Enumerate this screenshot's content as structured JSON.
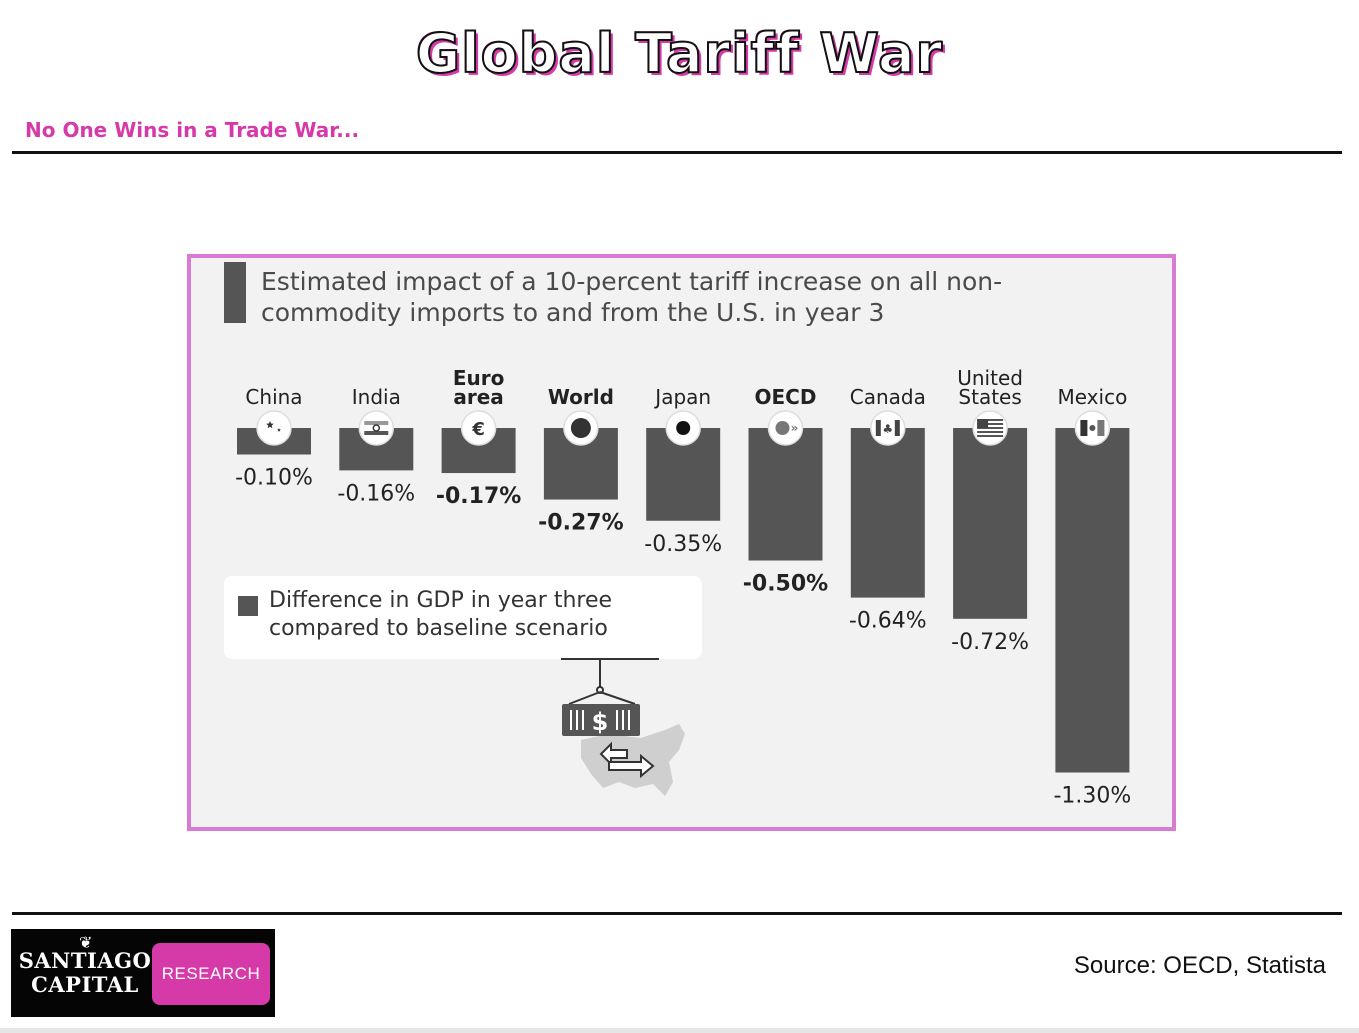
{
  "page": {
    "title": "Global Tariff War",
    "subtitle": "No One Wins in a Trade War...",
    "source": "Source: OECD, Statista",
    "logo": {
      "line1": "Santiago",
      "line2": "Capital",
      "badge": "RESEARCH"
    }
  },
  "colors": {
    "accent": "#d63aa9",
    "panel_border": "#d77cd0",
    "bar": "#555555",
    "panel_bg": "#f2f2f2"
  },
  "chart_data": {
    "type": "bar",
    "title": "Estimated impact of a 10-percent tariff increase on all non-commodity imports to and from the U.S. in year 3",
    "categories": [
      "China",
      "India",
      "Euro area",
      "World",
      "Japan",
      "OECD",
      "Canada",
      "United States",
      "Mexico"
    ],
    "bold_categories": [
      "Euro area",
      "World",
      "OECD"
    ],
    "values": [
      -0.1,
      -0.16,
      -0.17,
      -0.27,
      -0.35,
      -0.5,
      -0.64,
      -0.72,
      -1.3
    ],
    "value_labels": [
      "-0.10%",
      "-0.16%",
      "-0.17%",
      "-0.27%",
      "-0.35%",
      "-0.50%",
      "-0.64%",
      "-0.72%",
      "-1.30%"
    ],
    "icons": [
      "china-flag-icon",
      "india-flag-icon",
      "euro-icon",
      "globe-icon",
      "japan-flag-icon",
      "oecd-icon",
      "canada-flag-icon",
      "us-flag-icon",
      "mexico-flag-icon"
    ],
    "legend": "Difference in GDP in year three compared to baseline scenario",
    "unit": "%",
    "ylim": [
      -1.3,
      0
    ]
  }
}
